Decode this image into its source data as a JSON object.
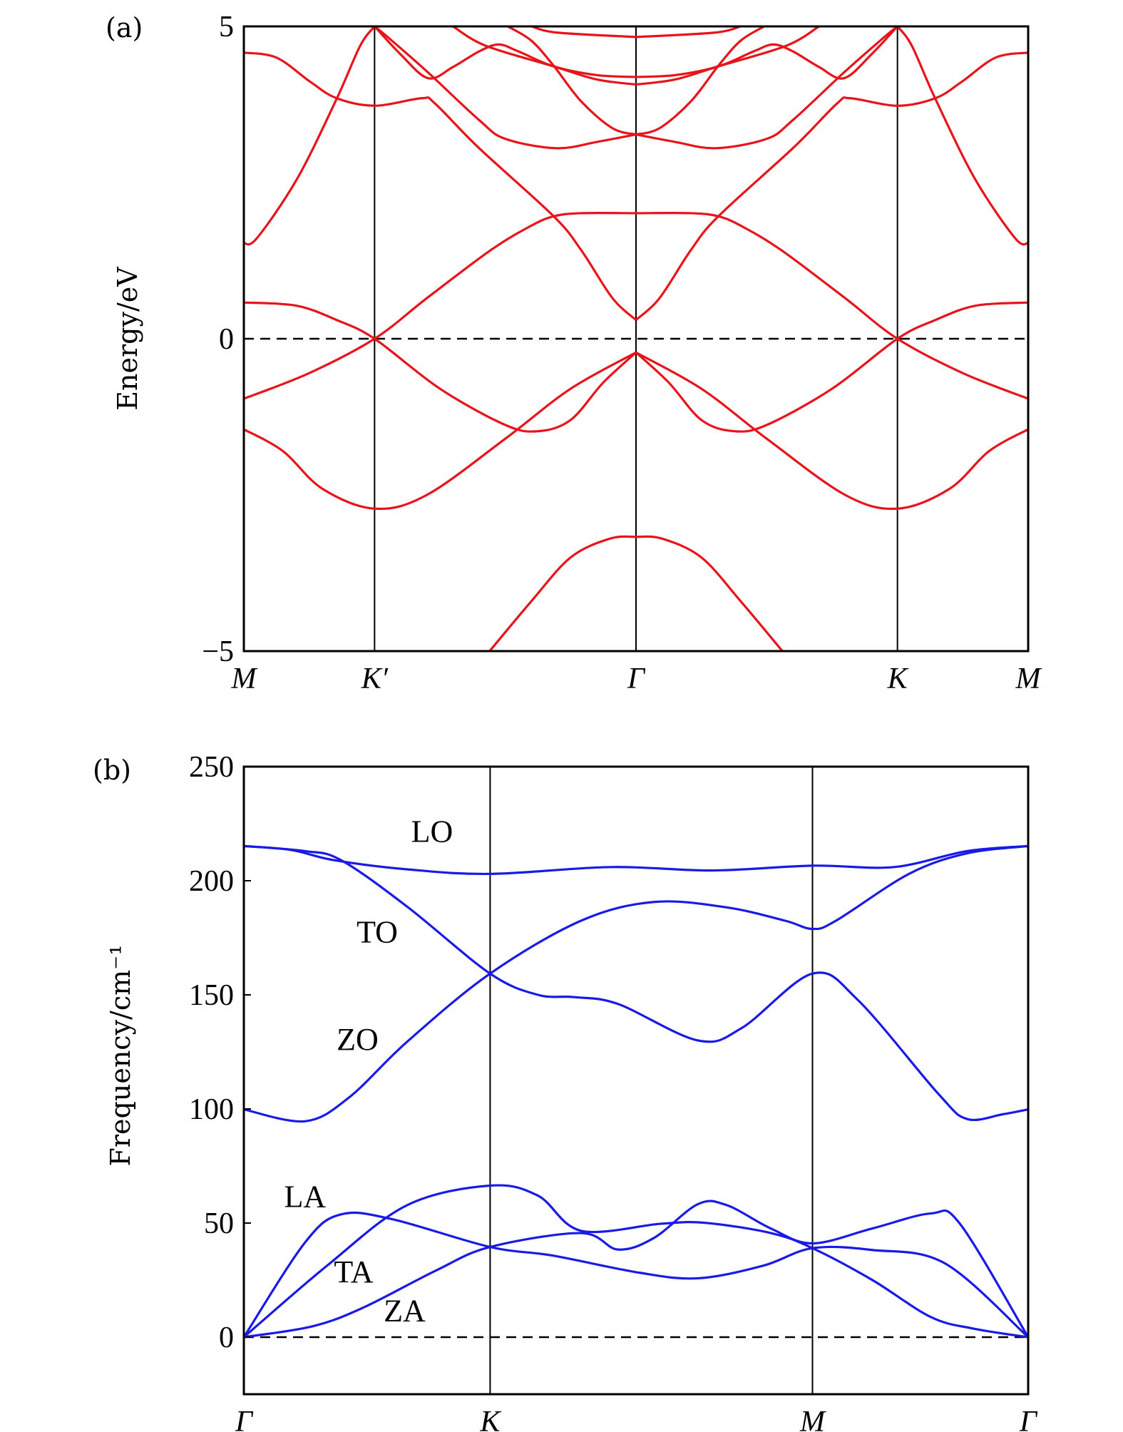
{
  "chart_data": [
    {
      "panel_label": "(a)",
      "type": "line",
      "ylabel": "Energy/eV",
      "ylim": [
        -5,
        5
      ],
      "yticks": [
        {
          "value": 5,
          "label": "5"
        },
        {
          "value": 0,
          "label": "0"
        },
        {
          "value": -5,
          "label": "−5"
        }
      ],
      "xlim": [
        0,
        6
      ],
      "xticks": [
        {
          "value": 0,
          "label": "M"
        },
        {
          "value": 1,
          "label": "K′"
        },
        {
          "value": 3,
          "label": "Γ"
        },
        {
          "value": 5,
          "label": "K"
        },
        {
          "value": 6,
          "label": "M"
        }
      ],
      "vlines": [
        1,
        3,
        5
      ],
      "reference_line": 0,
      "color": "#e8141b",
      "mirror_about": 3,
      "series_left_half": [
        {
          "name": "band-1",
          "points": [
            [
              1.88,
              -5
            ],
            [
              2.2,
              -4.2
            ],
            [
              2.5,
              -3.5
            ],
            [
              2.8,
              -3.2
            ],
            [
              3,
              -3.17
            ]
          ]
        },
        {
          "name": "band-2",
          "points": [
            [
              0,
              -1.45
            ],
            [
              0.3,
              -1.8
            ],
            [
              0.6,
              -2.4
            ],
            [
              1,
              -2.72
            ],
            [
              1.4,
              -2.5
            ],
            [
              2,
              -1.6
            ],
            [
              2.5,
              -0.8
            ],
            [
              3,
              -0.22
            ]
          ]
        },
        {
          "name": "band-3",
          "points": [
            [
              0,
              -0.96
            ],
            [
              0.5,
              -0.55
            ],
            [
              1,
              0
            ],
            [
              1.4,
              0.65
            ],
            [
              1.89,
              1.42
            ],
            [
              2.19,
              1.8
            ],
            [
              2.37,
              1.96
            ],
            [
              2.58,
              2.01
            ],
            [
              3,
              2.01
            ]
          ]
        },
        {
          "name": "band-4",
          "points": [
            [
              0,
              0.58
            ],
            [
              0.4,
              0.53
            ],
            [
              0.71,
              0.3
            ],
            [
              1,
              0
            ],
            [
              1.5,
              -0.8
            ],
            [
              2,
              -1.38
            ],
            [
              2.25,
              -1.48
            ],
            [
              2.5,
              -1.3
            ],
            [
              2.75,
              -0.7
            ],
            [
              3,
              -0.22
            ]
          ]
        },
        {
          "name": "band-5",
          "points": [
            [
              0,
              1.53
            ],
            [
              0.1,
              1.61
            ],
            [
              0.41,
              2.57
            ],
            [
              0.71,
              3.84
            ],
            [
              0.89,
              4.69
            ],
            [
              1,
              5
            ]
          ]
        },
        {
          "name": "band-6",
          "points": [
            [
              0,
              4.58
            ],
            [
              0.25,
              4.5
            ],
            [
              0.51,
              4.11
            ],
            [
              0.71,
              3.85
            ],
            [
              1,
              3.73
            ],
            [
              1.36,
              3.85
            ],
            [
              1.46,
              3.77
            ],
            [
              1.79,
              3.07
            ],
            [
              2.37,
              1.96
            ],
            [
              2.58,
              1.42
            ],
            [
              2.82,
              0.65
            ],
            [
              3,
              0.3
            ]
          ]
        },
        {
          "name": "band-7",
          "points": [
            [
              1,
              5
            ],
            [
              1.2,
              4.55
            ],
            [
              1.41,
              4.17
            ],
            [
              1.6,
              4.35
            ],
            [
              1.8,
              4.6
            ],
            [
              1.95,
              4.71
            ],
            [
              2.1,
              4.6
            ],
            [
              2.37,
              4.36
            ],
            [
              2.7,
              4.22
            ],
            [
              3,
              4.19
            ]
          ]
        },
        {
          "name": "band-8",
          "points": [
            [
              1.6,
              5
            ],
            [
              1.85,
              4.69
            ],
            [
              2.37,
              4.36
            ],
            [
              2.7,
              4.15
            ],
            [
              3,
              4.07
            ]
          ]
        },
        {
          "name": "band-9",
          "points": [
            [
              1,
              5
            ],
            [
              1.1,
              4.83
            ],
            [
              1.4,
              4.28
            ],
            [
              1.8,
              3.5
            ],
            [
              2,
              3.2
            ],
            [
              2.39,
              3.05
            ],
            [
              2.7,
              3.15
            ],
            [
              3,
              3.27
            ]
          ]
        },
        {
          "name": "band-10",
          "points": [
            [
              2.02,
              5
            ],
            [
              2.2,
              4.77
            ],
            [
              2.37,
              4.37
            ],
            [
              2.58,
              3.8
            ],
            [
              2.82,
              3.37
            ],
            [
              3,
              3.27
            ]
          ]
        },
        {
          "name": "band-11",
          "points": [
            [
              2.2,
              5
            ],
            [
              2.4,
              4.9
            ],
            [
              3,
              4.83
            ]
          ]
        }
      ]
    },
    {
      "panel_label": "(b)",
      "type": "line",
      "ylabel": "Frequency/cm⁻¹",
      "ylim": [
        -25,
        250
      ],
      "yticks": [
        {
          "value": 250,
          "label": "250"
        },
        {
          "value": 200,
          "label": "200"
        },
        {
          "value": 150,
          "label": "150"
        },
        {
          "value": 100,
          "label": "100"
        },
        {
          "value": 50,
          "label": "50"
        },
        {
          "value": 0,
          "label": "0"
        }
      ],
      "xlim": [
        0,
        1
      ],
      "xticks": [
        {
          "value": 0,
          "label": "Γ"
        },
        {
          "value": 0.314,
          "label": "K"
        },
        {
          "value": 0.725,
          "label": "M"
        },
        {
          "value": 1,
          "label": "Γ"
        }
      ],
      "vlines": [
        0.314,
        0.725
      ],
      "reference_line": 0,
      "color": "#1a1ae6",
      "annotations": [
        {
          "text": "LO",
          "x": 0.24,
          "y": 217
        },
        {
          "text": "TO",
          "x": 0.17,
          "y": 173
        },
        {
          "text": "ZO",
          "x": 0.145,
          "y": 126
        },
        {
          "text": "LA",
          "x": 0.078,
          "y": 57
        },
        {
          "text": "TA",
          "x": 0.14,
          "y": 24
        },
        {
          "text": "ZA",
          "x": 0.205,
          "y": 7
        }
      ],
      "series": [
        {
          "name": "LO",
          "points": [
            [
              0,
              215.2
            ],
            [
              0.06,
              213.5
            ],
            [
              0.115,
              209
            ],
            [
              0.208,
              205
            ],
            [
              0.314,
              203
            ],
            [
              0.468,
              206
            ],
            [
              0.597,
              204.5
            ],
            [
              0.725,
              206.6
            ],
            [
              0.829,
              206
            ],
            [
              0.922,
              213
            ],
            [
              1,
              215.2
            ]
          ]
        },
        {
          "name": "TO",
          "points": [
            [
              0,
              215.2
            ],
            [
              0.078,
              213
            ],
            [
              0.124,
              209
            ],
            [
              0.208,
              188.7
            ],
            [
              0.314,
              159.3
            ],
            [
              0.375,
              150
            ],
            [
              0.421,
              149
            ],
            [
              0.477,
              146
            ],
            [
              0.579,
              130
            ],
            [
              0.635,
              135.5
            ],
            [
              0.725,
              159.3
            ],
            [
              0.783,
              147.7
            ],
            [
              0.885,
              106.8
            ],
            [
              0.922,
              95.6
            ],
            [
              0.968,
              97.7
            ],
            [
              1,
              99.8
            ]
          ]
        },
        {
          "name": "ZO",
          "points": [
            [
              0,
              99.8
            ],
            [
              0.078,
              94.6
            ],
            [
              0.134,
              105
            ],
            [
              0.208,
              129.4
            ],
            [
              0.314,
              159.3
            ],
            [
              0.43,
              182.5
            ],
            [
              0.523,
              190.7
            ],
            [
              0.616,
              188.3
            ],
            [
              0.69,
              182.5
            ],
            [
              0.725,
              178.9
            ],
            [
              0.755,
              182.5
            ],
            [
              0.848,
              203
            ],
            [
              0.922,
              212
            ],
            [
              1,
              215.2
            ]
          ]
        },
        {
          "name": "LA",
          "points": [
            [
              0,
              0
            ],
            [
              0.078,
              41.5
            ],
            [
              0.124,
              53.8
            ],
            [
              0.189,
              51.7
            ],
            [
              0.314,
              39.5
            ],
            [
              0.393,
              35.8
            ],
            [
              0.505,
              28.2
            ],
            [
              0.579,
              25.8
            ],
            [
              0.662,
              31.3
            ],
            [
              0.725,
              39
            ],
            [
              0.801,
              38.2
            ],
            [
              0.894,
              32.3
            ],
            [
              1,
              0
            ]
          ]
        },
        {
          "name": "TA",
          "points": [
            [
              0,
              0
            ],
            [
              0.106,
              31.3
            ],
            [
              0.208,
              57.8
            ],
            [
              0.314,
              66.4
            ],
            [
              0.375,
              62
            ],
            [
              0.43,
              46.6
            ],
            [
              0.532,
              49.7
            ],
            [
              0.588,
              50.1
            ],
            [
              0.672,
              45.6
            ],
            [
              0.725,
              39
            ],
            [
              0.801,
              25.1
            ],
            [
              0.876,
              8.8
            ],
            [
              0.931,
              3.7
            ],
            [
              1,
              0
            ]
          ]
        },
        {
          "name": "ZA",
          "points": [
            [
              0,
              0
            ],
            [
              0.087,
              4.7
            ],
            [
              0.152,
              12.9
            ],
            [
              0.245,
              29.2
            ],
            [
              0.314,
              39.5
            ],
            [
              0.43,
              45.6
            ],
            [
              0.477,
              38.4
            ],
            [
              0.523,
              43.5
            ],
            [
              0.579,
              58.3
            ],
            [
              0.616,
              57.8
            ],
            [
              0.672,
              47.6
            ],
            [
              0.725,
              41.1
            ],
            [
              0.801,
              47.6
            ],
            [
              0.876,
              54.2
            ],
            [
              0.913,
              49.7
            ],
            [
              1,
              0
            ]
          ]
        }
      ]
    }
  ]
}
